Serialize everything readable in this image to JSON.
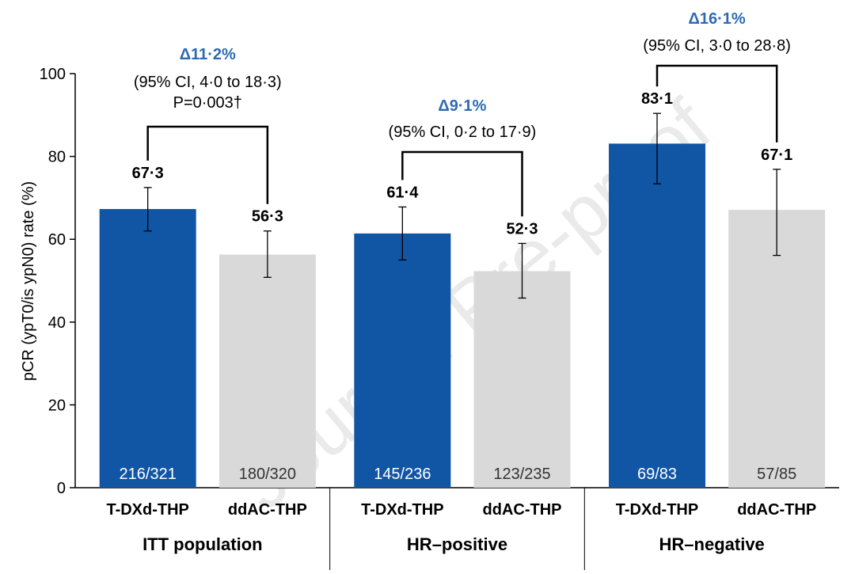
{
  "colors": {
    "tdxd": "#1155a5",
    "ddac": "#d9d9d9",
    "delta": "#2e6ab3",
    "tdxd_n_text": "#ffffff",
    "ddac_n_text": "#333333"
  },
  "watermark": "Journal Pre-proof",
  "chart_data": {
    "type": "bar",
    "ylabel": "pCR (ypT0/is ypN0) rate (%)",
    "ylim": [
      0,
      100
    ],
    "yticks": [
      0,
      20,
      40,
      60,
      80,
      100
    ],
    "groups": [
      {
        "name": "ITT population",
        "bars": [
          {
            "label": "T-DXd-THP",
            "value": 67.3,
            "value_label": "67·3",
            "ci_low": 62.0,
            "ci_high": 72.5,
            "n_label": "216/321",
            "arm": "tdxd"
          },
          {
            "label": "ddAC-THP",
            "value": 56.3,
            "value_label": "56·3",
            "ci_low": 50.8,
            "ci_high": 62.0,
            "n_label": "180/320",
            "arm": "ddac"
          }
        ],
        "delta": "Δ11·2%",
        "ci_text": [
          "(95% CI, 4·0 to 18·3)",
          "P=0·003†"
        ]
      },
      {
        "name": "HR–positive",
        "bars": [
          {
            "label": "T-DXd-THP",
            "value": 61.4,
            "value_label": "61·4",
            "ci_low": 55.0,
            "ci_high": 67.8,
            "n_label": "145/236",
            "arm": "tdxd"
          },
          {
            "label": "ddAC-THP",
            "value": 52.3,
            "value_label": "52·3",
            "ci_low": 45.8,
            "ci_high": 59.0,
            "n_label": "123/235",
            "arm": "ddac"
          }
        ],
        "delta": "Δ9·1%",
        "ci_text": [
          "(95% CI, 0·2 to 17·9)"
        ]
      },
      {
        "name": "HR–negative",
        "bars": [
          {
            "label": "T-DXd-THP",
            "value": 83.1,
            "value_label": "83·1",
            "ci_low": 73.4,
            "ci_high": 90.4,
            "n_label": "69/83",
            "arm": "tdxd"
          },
          {
            "label": "ddAC-THP",
            "value": 67.1,
            "value_label": "67·1",
            "ci_low": 56.1,
            "ci_high": 76.9,
            "n_label": "57/85",
            "arm": "ddac"
          }
        ],
        "delta": "Δ16·1%",
        "ci_text": [
          "(95% CI, 3·0 to 28·8)"
        ]
      }
    ]
  }
}
